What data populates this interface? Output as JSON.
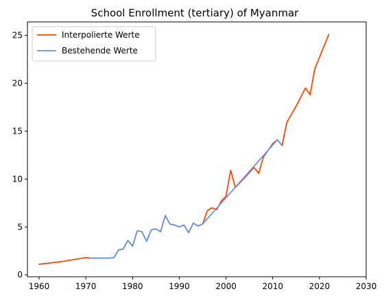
{
  "chart_data": {
    "type": "line",
    "title": "School Enrollment (tertiary) of Myanmar",
    "xlabel": "",
    "ylabel": "",
    "xlim": [
      1957.5,
      2030
    ],
    "ylim": [
      -0.2,
      26.4
    ],
    "xticks": [
      1960,
      1970,
      1980,
      1990,
      2000,
      2010,
      2020,
      2030
    ],
    "yticks": [
      0,
      5,
      10,
      15,
      20,
      25
    ],
    "grid": false,
    "legend": {
      "placement": "top-left"
    },
    "series": [
      {
        "name": "Interpolierte Werte",
        "color": "#ff4500",
        "x": [
          1960,
          1965,
          1970,
          1971,
          1972,
          1973,
          1974,
          1975,
          1976,
          1977,
          1978,
          1979,
          1980,
          1981,
          1982,
          1983,
          1984,
          1985,
          1986,
          1987,
          1988,
          1989,
          1990,
          1991,
          1992,
          1993,
          1994,
          1995,
          1996,
          1997,
          1998,
          1999,
          2000,
          2001,
          2002,
          2006,
          2007,
          2008,
          2010,
          2011,
          2012,
          2013,
          2015,
          2017,
          2018,
          2019,
          2022
        ],
        "y": [
          1.1,
          1.4,
          1.8,
          1.75,
          1.75,
          1.75,
          1.75,
          1.75,
          1.8,
          2.6,
          2.7,
          3.6,
          3.0,
          4.6,
          4.5,
          3.5,
          4.7,
          4.8,
          4.5,
          6.2,
          5.3,
          5.2,
          5.0,
          5.2,
          4.4,
          5.4,
          5.1,
          5.3,
          6.7,
          7.0,
          6.8,
          7.7,
          8.2,
          10.9,
          9.1,
          11.2,
          10.6,
          12.3,
          13.7,
          14.1,
          13.5,
          15.9,
          17.6,
          19.5,
          18.8,
          21.5,
          25.1
        ]
      },
      {
        "name": "Bestehende Werte",
        "color": "#6495ed",
        "x": [
          1971,
          1972,
          1973,
          1974,
          1975,
          1976,
          1977,
          1978,
          1979,
          1980,
          1981,
          1982,
          1983,
          1984,
          1985,
          1986,
          1987,
          1988,
          1989,
          1990,
          1991,
          1992,
          1993,
          1994,
          1995,
          2011,
          2012
        ],
        "y": [
          1.75,
          1.75,
          1.75,
          1.75,
          1.75,
          1.8,
          2.6,
          2.7,
          3.6,
          3.0,
          4.6,
          4.5,
          3.5,
          4.7,
          4.8,
          4.5,
          6.2,
          5.3,
          5.2,
          5.0,
          5.2,
          4.4,
          5.4,
          5.1,
          5.3,
          14.1,
          13.5
        ]
      }
    ]
  }
}
